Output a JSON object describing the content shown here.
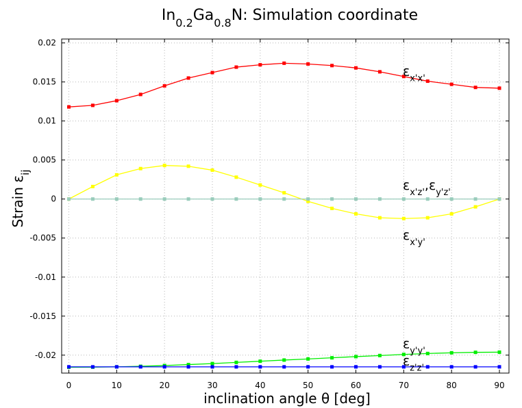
{
  "chart_data": {
    "type": "line",
    "title": {
      "parts": [
        {
          "text": "In",
          "sub": false
        },
        {
          "text": "0.2",
          "sub": true
        },
        {
          "text": "Ga",
          "sub": false
        },
        {
          "text": "0.8",
          "sub": true
        },
        {
          "text": "N: Simulation coordinate",
          "sub": false
        }
      ]
    },
    "xlabel": "inclination angle θ [deg]",
    "ylabel": {
      "parts": [
        {
          "text": "Strain ε",
          "sub": false
        },
        {
          "text": "ij",
          "sub": true
        }
      ]
    },
    "xlim": [
      -1.5,
      92
    ],
    "ylim": [
      -0.0223,
      0.0205
    ],
    "xticks": [
      0,
      10,
      20,
      30,
      40,
      50,
      60,
      70,
      80,
      90
    ],
    "xtick_labels": [
      "0",
      "10",
      "20",
      "30",
      "40",
      "50",
      "60",
      "70",
      "80",
      "90"
    ],
    "yticks": [
      0.02,
      0.015,
      0.01,
      0.005,
      0,
      -0.005,
      -0.01,
      -0.015,
      -0.02
    ],
    "ytick_labels": [
      "0.02",
      "0.015",
      "0.01",
      "0.005",
      "0",
      "-0.005",
      "-0.01",
      "-0.015",
      "-0.02"
    ],
    "grid": true,
    "x": [
      0,
      5,
      10,
      15,
      20,
      25,
      30,
      35,
      40,
      45,
      50,
      55,
      60,
      65,
      70,
      75,
      80,
      85,
      90
    ],
    "series": [
      {
        "key": "exx",
        "color": "#ff0000",
        "label_parts": [
          {
            "text": "ε",
            "sub": false
          },
          {
            "text": "x'x'",
            "sub": true
          }
        ],
        "label_pos": [
          69.8,
          0.0158
        ],
        "values": [
          0.0118,
          0.012,
          0.0126,
          0.0134,
          0.0145,
          0.0155,
          0.0162,
          0.0169,
          0.0172,
          0.0174,
          0.0173,
          0.0171,
          0.0168,
          0.0163,
          0.0157,
          0.0151,
          0.0147,
          0.0143,
          0.0142
        ]
      },
      {
        "key": "exy",
        "color": "#ffff00",
        "label_parts": [
          {
            "text": "ε",
            "sub": false
          },
          {
            "text": "x'y'",
            "sub": true
          }
        ],
        "label_pos": [
          69.8,
          -0.0052
        ],
        "values": [
          0.0,
          0.0016,
          0.0031,
          0.0039,
          0.0043,
          0.0042,
          0.0037,
          0.0028,
          0.0018,
          0.0008,
          -0.0003,
          -0.0012,
          -0.0019,
          -0.0024,
          -0.0025,
          -0.0024,
          -0.0019,
          -0.001,
          0.0
        ]
      },
      {
        "key": "exz",
        "color": "#99ccbb",
        "label_parts": [
          {
            "text": "ε",
            "sub": false
          },
          {
            "text": "x'z'",
            "sub": true
          },
          {
            "text": ",ε",
            "sub": false
          },
          {
            "text": "y'z'",
            "sub": true
          }
        ],
        "label_pos": [
          69.8,
          0.0012
        ],
        "values": [
          0,
          0,
          0,
          0,
          0,
          0,
          0,
          0,
          0,
          0,
          0,
          0,
          0,
          0,
          0,
          0,
          0,
          0,
          0
        ]
      },
      {
        "key": "eyy",
        "color": "#00ee00",
        "label_parts": [
          {
            "text": "ε",
            "sub": false
          },
          {
            "text": "y'y'",
            "sub": true
          }
        ],
        "label_pos": [
          69.8,
          -0.0191
        ],
        "values": [
          -0.02155,
          -0.02154,
          -0.0215,
          -0.02143,
          -0.02133,
          -0.02121,
          -0.02108,
          -0.02093,
          -0.02078,
          -0.02063,
          -0.02049,
          -0.02034,
          -0.02019,
          -0.02005,
          -0.01991,
          -0.01979,
          -0.0197,
          -0.01964,
          -0.01962
        ]
      },
      {
        "key": "ezz",
        "color": "#0000ff",
        "label_parts": [
          {
            "text": "ε",
            "sub": false
          },
          {
            "text": "z'z'",
            "sub": true
          }
        ],
        "label_pos": [
          69.8,
          -0.0213
        ],
        "values": [
          -0.0215,
          -0.0215,
          -0.0215,
          -0.0215,
          -0.0215,
          -0.0215,
          -0.0215,
          -0.0215,
          -0.0215,
          -0.0215,
          -0.0215,
          -0.0215,
          -0.0215,
          -0.0215,
          -0.0215,
          -0.0215,
          -0.0215,
          -0.0215,
          -0.0215
        ]
      }
    ]
  }
}
